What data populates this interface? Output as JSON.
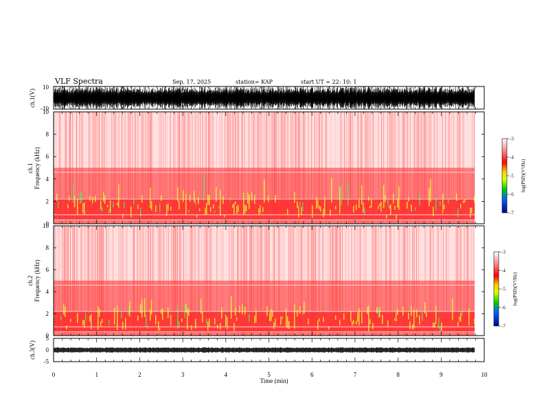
{
  "header": {
    "title": "VLF Spectra",
    "date": "Sep. 17, 2025",
    "station": "station= KAP",
    "start": "start  UT  =   22: 10: 1"
  },
  "colors": {
    "spectro_bg": "#ffe0e0",
    "band_red": "#ff2a2a",
    "band_yellow": "#e6ff33",
    "waveform": "#000000"
  },
  "chart_data": [
    {
      "type": "line",
      "name": "ch1-waveform",
      "ylabel": "ch.1(V)",
      "ylim": [
        -10,
        10
      ],
      "yticks": [
        "10",
        "-10"
      ],
      "xlim": [
        0,
        10
      ]
    },
    {
      "type": "heatmap",
      "name": "ch1-spectrogram",
      "ylabel": "ch.1",
      "ylabel2": "Frequency (kHz)",
      "ylim": [
        0,
        10
      ],
      "yticks": [
        "0",
        "2",
        "4",
        "6",
        "8",
        "10"
      ],
      "xlim": [
        0,
        10
      ],
      "colorbar": {
        "label": "log(PSD)(V²/Hz)",
        "range": [
          -7,
          -3
        ],
        "ticks": [
          "-3",
          "-4",
          "-5",
          "-6",
          "-7"
        ]
      }
    },
    {
      "type": "heatmap",
      "name": "ch2-spectrogram",
      "ylabel": "ch.2",
      "ylabel2": "Frequency (kHz)",
      "ylim": [
        0,
        10
      ],
      "yticks": [
        "0",
        "2",
        "4",
        "6",
        "8",
        "10"
      ],
      "xlim": [
        0,
        10
      ],
      "colorbar": {
        "label": "log(PSD)(V²/Hz)",
        "range": [
          -7,
          -3
        ],
        "ticks": [
          "-3",
          "-4",
          "-5",
          "-6",
          "-7"
        ]
      }
    },
    {
      "type": "line",
      "name": "ch3-waveform",
      "ylabel": "ch.3(V)",
      "ylim": [
        -5,
        5
      ],
      "yticks": [
        "5",
        "0",
        "-5"
      ],
      "xlim": [
        0,
        10
      ],
      "xlabel": "Time (min)",
      "xticks": [
        "0",
        "1",
        "2",
        "3",
        "4",
        "5",
        "6",
        "7",
        "8",
        "9",
        "10"
      ]
    }
  ]
}
